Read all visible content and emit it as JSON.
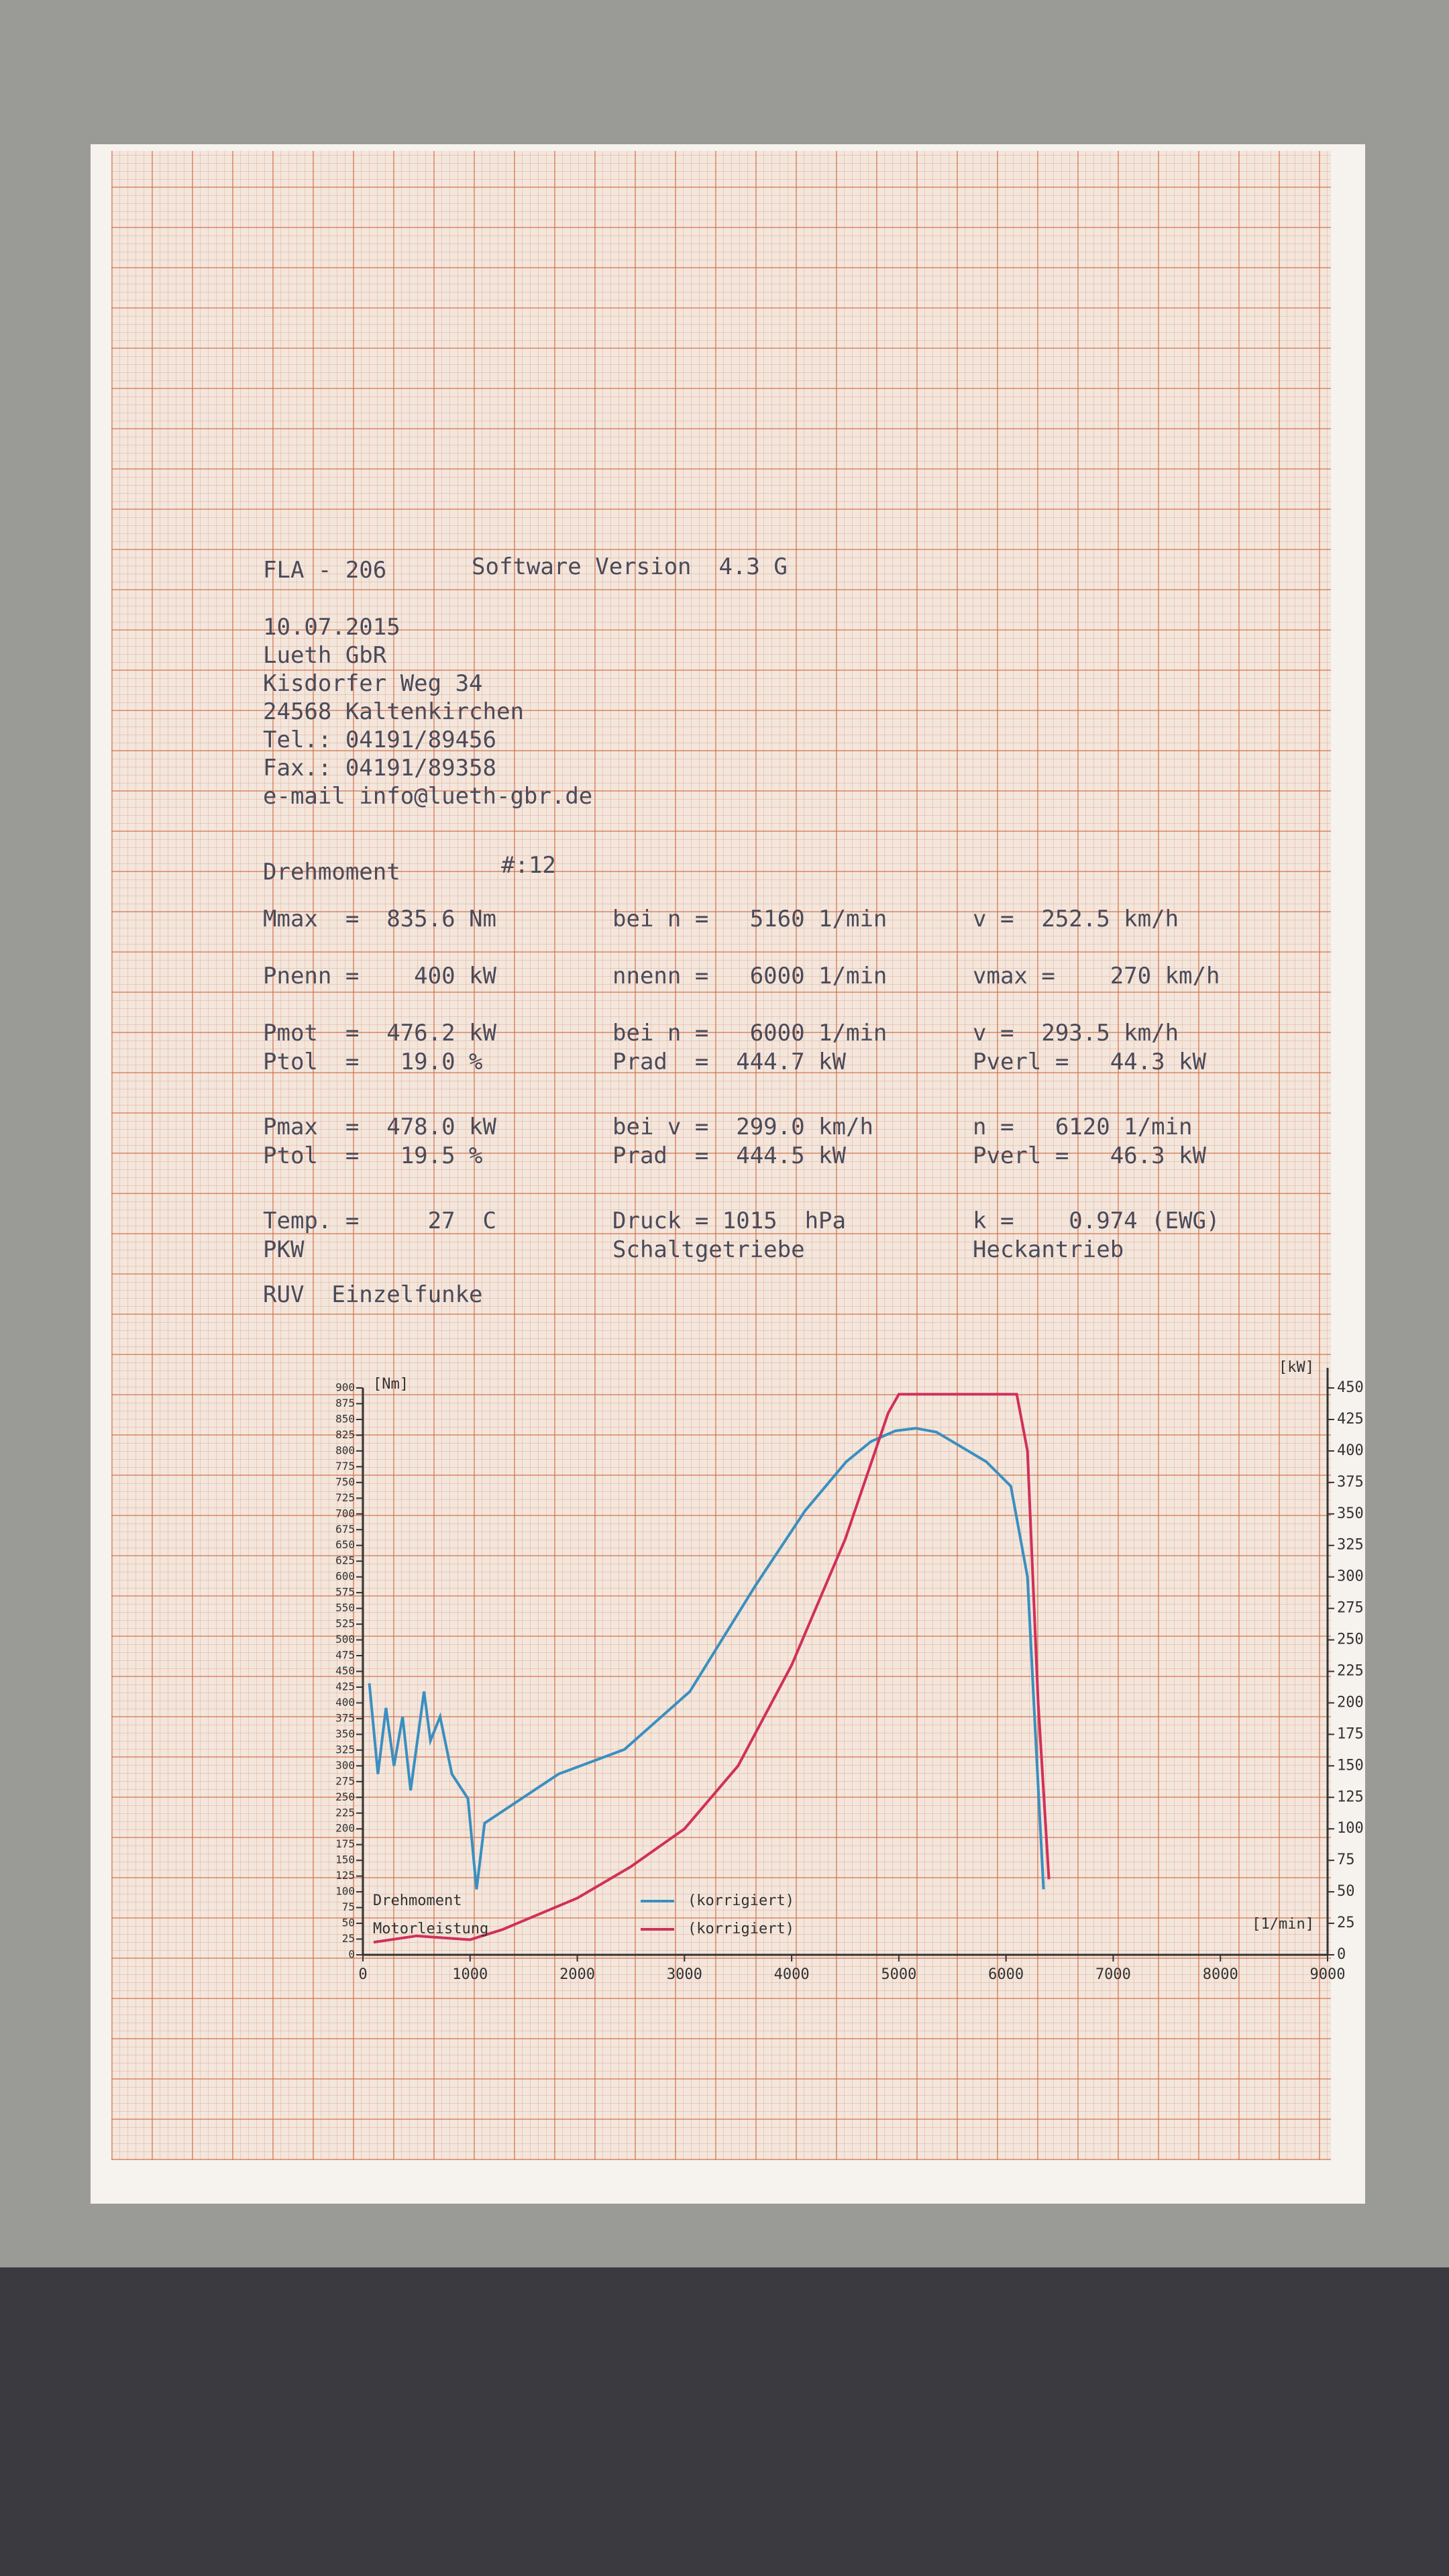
{
  "header": {
    "device": "FLA - 206",
    "software": "Software Version  4.3 G",
    "address": [
      "10.07.2015",
      "Lueth GbR",
      "Kisdorfer Weg 34",
      "24568 Kaltenkirchen",
      "Tel.: 04191/89456",
      "Fax.: 04191/89358",
      "e-mail info@lueth-gbr.de"
    ],
    "measurement": "Drehmoment",
    "number": "#:12"
  },
  "table": {
    "rows": [
      [
        "Mmax  =  835.6 Nm",
        "bei n =   5160 1/min",
        "v =  252.5 km/h"
      ],
      [
        "Pnenn =    400 kW",
        "nnenn =   6000 1/min",
        "vmax =    270 km/h"
      ],
      [
        "Pmot  =  476.2 kW",
        "bei n =   6000 1/min",
        "v =  293.5 km/h"
      ],
      [
        "Ptol  =   19.0 %",
        "Prad  =  444.7 kW",
        "Pverl =   44.3 kW"
      ],
      [
        "Pmax  =  478.0 kW",
        "bei v =  299.0 km/h",
        "n =   6120 1/min"
      ],
      [
        "Ptol  =   19.5 %",
        "Prad  =  444.5 kW",
        "Pverl =   46.3 kW"
      ],
      [
        "Temp. =     27  C",
        "Druck = 1015  hPa",
        "k =    0.974 (EWG)"
      ],
      [
        "PKW",
        "Schaltgetriebe",
        "Heckantrieb"
      ],
      [
        "RUV  Einzelfunke"
      ]
    ]
  },
  "chart_data": {
    "type": "line",
    "ylabel": "[Nm]",
    "y2label": "[kW]",
    "xlabel": "[1/min]",
    "xlim": [
      0,
      9000
    ],
    "xticks": [
      0,
      1000,
      2000,
      3000,
      4000,
      5000,
      6000,
      7000,
      8000,
      9000
    ],
    "ylim": [
      0,
      900
    ],
    "yticks": [
      0,
      25,
      50,
      75,
      100,
      125,
      150,
      175,
      200,
      225,
      250,
      275,
      300,
      325,
      350,
      375,
      400,
      425,
      450,
      475,
      500,
      525,
      550,
      575,
      600,
      625,
      650,
      675,
      700,
      725,
      750,
      775,
      800,
      825,
      850,
      875,
      900
    ],
    "y2lim": [
      0,
      450
    ],
    "y2ticks": [
      0,
      25,
      50,
      75,
      100,
      125,
      150,
      175,
      200,
      225,
      250,
      275,
      300,
      325,
      350,
      375,
      400,
      425,
      450
    ],
    "series": [
      {
        "name": "Drehmoment",
        "note_label": "(korrigiert)",
        "color": "#3a8fc0",
        "axis": "y",
        "x": [
          60,
          140,
          215,
          290,
          370,
          445,
          570,
          630,
          720,
          830,
          980,
          1060,
          1135,
          1365,
          1825,
          2440,
          3050,
          3665,
          4125,
          4510,
          4740,
          4970,
          5160,
          5350,
          5815,
          6045,
          6200,
          6270,
          6350
        ],
        "values": [
          431,
          287,
          392,
          300,
          378,
          261,
          418,
          340,
          378,
          287,
          248,
          104,
          209,
          235,
          287,
          326,
          418,
          587,
          705,
          783,
          815,
          832,
          836,
          830,
          783,
          744,
          600,
          365,
          104
        ]
      },
      {
        "name": "Motorleistung",
        "note_label": "(korrigiert)",
        "color": "#d0305a",
        "axis": "y2",
        "x": [
          100,
          500,
          1000,
          1300,
          2000,
          2500,
          3000,
          3500,
          4000,
          4500,
          4900,
          5000,
          6100,
          6200,
          6300,
          6400
        ],
        "values": [
          10,
          15,
          12,
          20,
          45,
          70,
          100,
          150,
          230,
          330,
          430,
          445,
          445,
          400,
          200,
          60
        ]
      }
    ]
  }
}
